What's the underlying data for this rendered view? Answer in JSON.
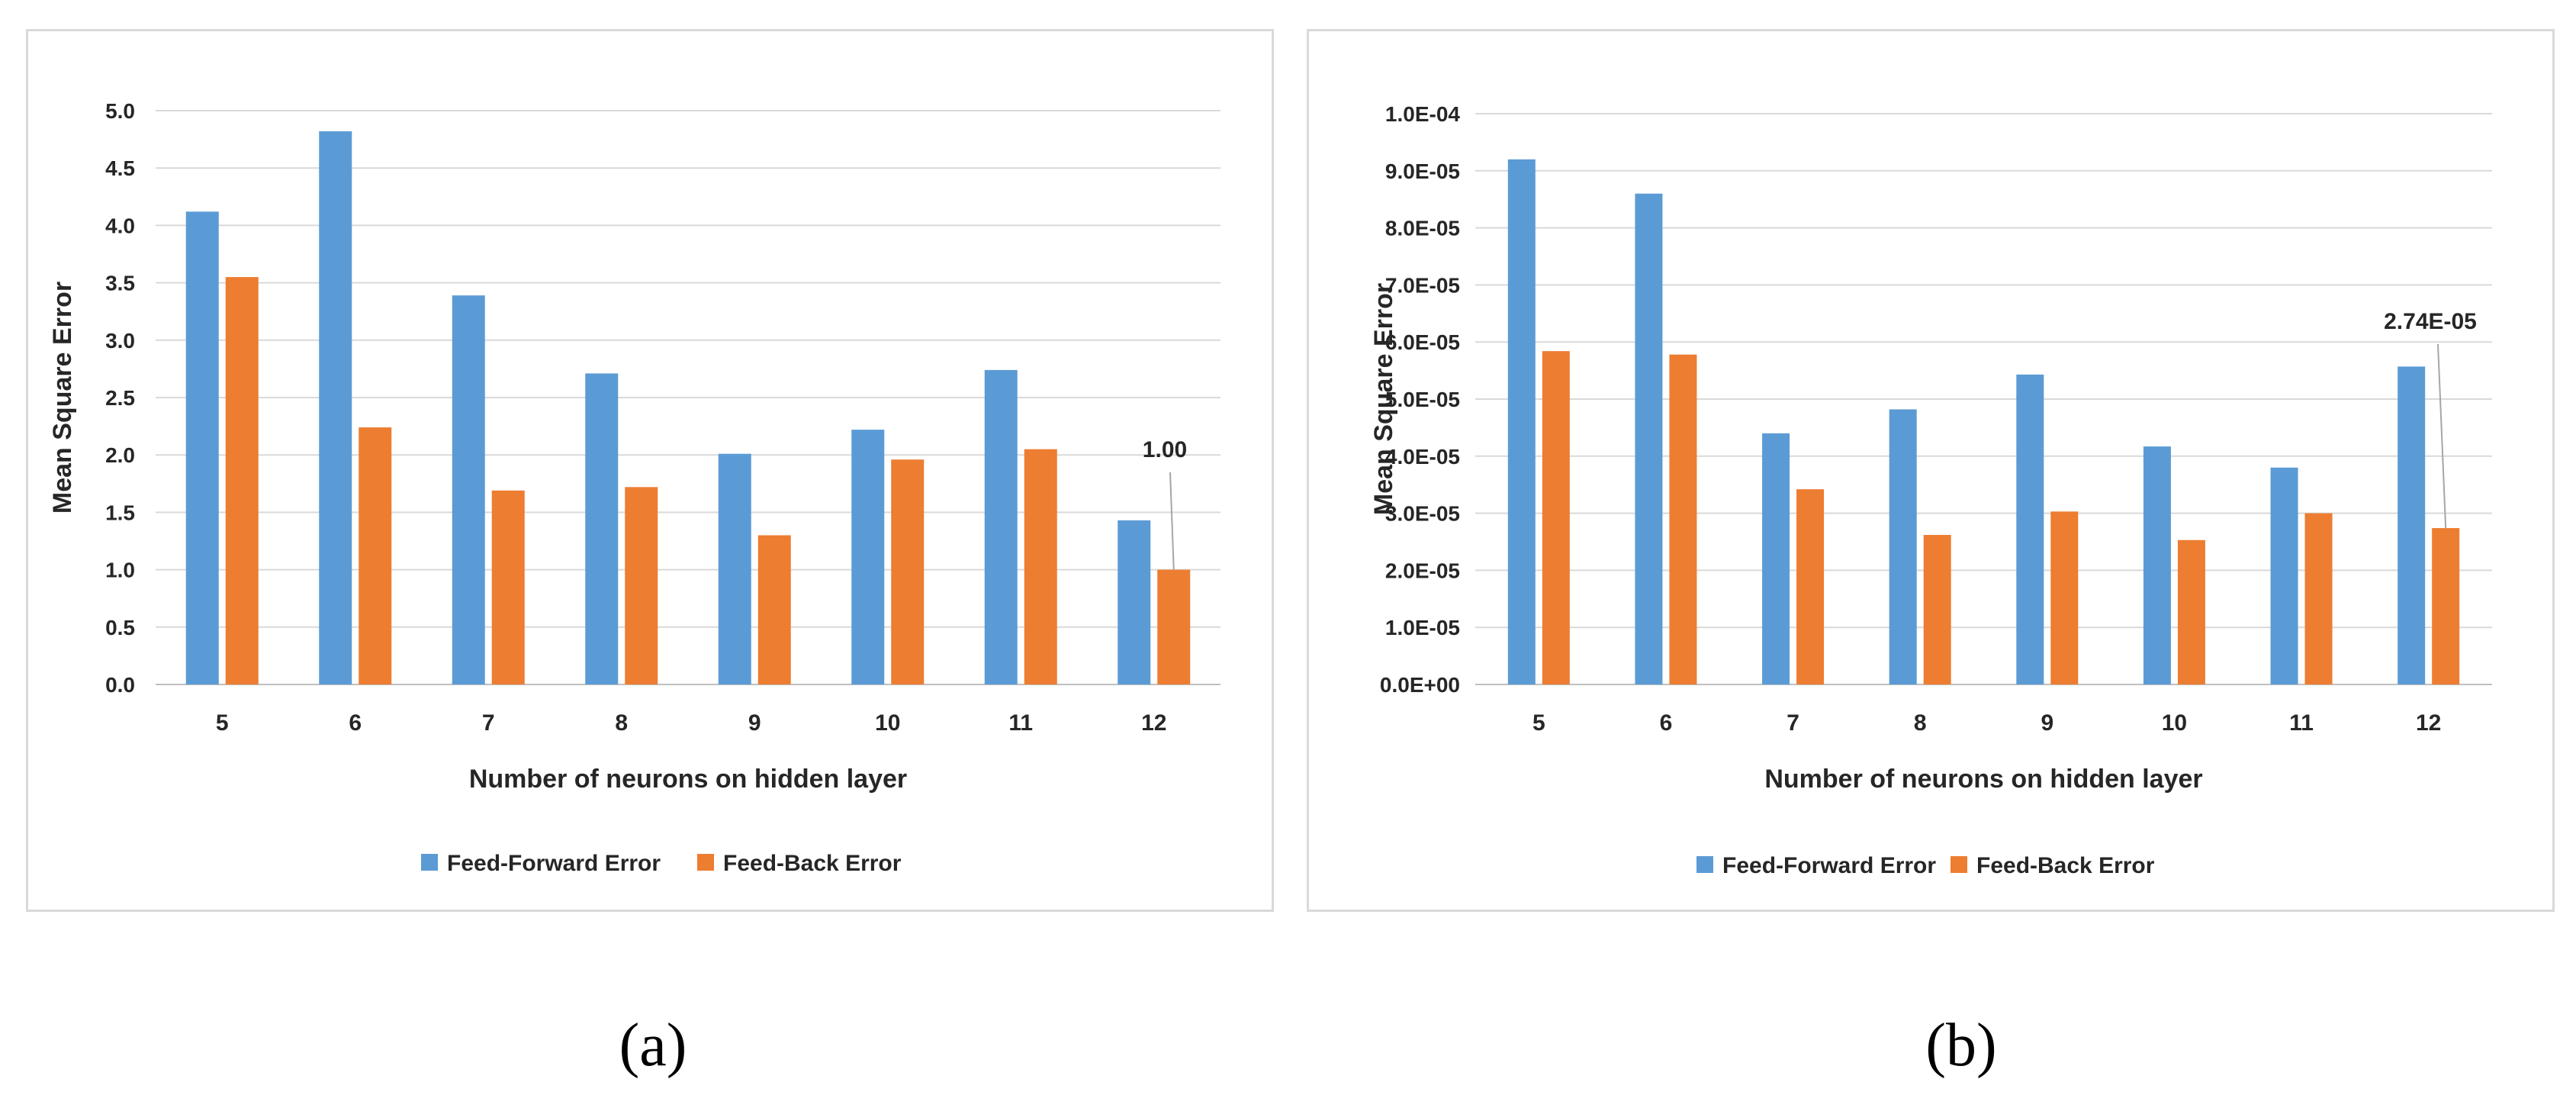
{
  "chart_data": [
    {
      "id": "a",
      "type": "bar",
      "title": "",
      "xlabel": "Number of neurons on hidden layer",
      "ylabel": "Mean Square Error",
      "categories": [
        "5",
        "6",
        "7",
        "8",
        "9",
        "10",
        "11",
        "12"
      ],
      "series": [
        {
          "name": "Feed-Forward Error",
          "color": "#5B9BD5",
          "values": [
            4.12,
            4.82,
            3.39,
            2.71,
            2.01,
            2.22,
            2.74,
            1.43
          ]
        },
        {
          "name": "Feed-Back Error",
          "color": "#ED7D31",
          "values": [
            3.55,
            2.24,
            1.69,
            1.72,
            1.3,
            1.96,
            2.05,
            1.0
          ]
        }
      ],
      "ylim": [
        0,
        5
      ],
      "yticks": [
        "0.0",
        "0.5",
        "1.0",
        "1.5",
        "2.0",
        "2.5",
        "3.0",
        "3.5",
        "4.0",
        "4.5",
        "5.0"
      ],
      "grid": true,
      "legend": "bottom",
      "annotation": {
        "text": "1.00",
        "category": "12",
        "series": "Feed-Back Error"
      }
    },
    {
      "id": "b",
      "type": "bar",
      "title": "",
      "xlabel": "Number of neurons on hidden layer",
      "ylabel": "Mean Square Error",
      "categories": [
        "5",
        "6",
        "7",
        "8",
        "9",
        "10",
        "11",
        "12"
      ],
      "series": [
        {
          "name": "Feed-Forward Error",
          "color": "#5B9BD5",
          "values": [
            9.2e-05,
            8.6e-05,
            4.4e-05,
            4.82e-05,
            5.43e-05,
            4.17e-05,
            3.8e-05,
            5.57e-05
          ]
        },
        {
          "name": "Feed-Back Error",
          "color": "#ED7D31",
          "values": [
            5.84e-05,
            5.78e-05,
            3.42e-05,
            2.62e-05,
            3.03e-05,
            2.53e-05,
            3e-05,
            2.74e-05
          ]
        }
      ],
      "ylim": [
        0,
        0.0001
      ],
      "yticks": [
        "0.0E+00",
        "1.0E-05",
        "2.0E-05",
        "3.0E-05",
        "4.0E-05",
        "5.0E-05",
        "6.0E-05",
        "7.0E-05",
        "8.0E-05",
        "9.0E-05",
        "1.0E-04"
      ],
      "grid": true,
      "legend": "bottom",
      "annotation": {
        "text": "2.74E-05",
        "category": "12",
        "series": "Feed-Back Error"
      }
    }
  ],
  "captions": {
    "a": "(a)",
    "b": "(b)"
  }
}
